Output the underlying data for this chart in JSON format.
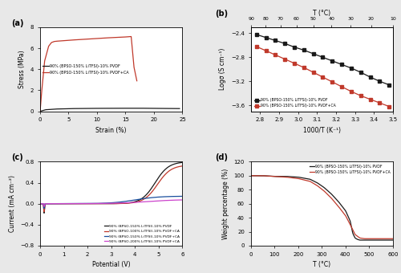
{
  "fig_bg": "#e8e8e8",
  "panel_a": {
    "label": "(a)",
    "xlabel": "Strain (%)",
    "ylabel": "Stress (MPa)",
    "xlim": [
      0,
      25
    ],
    "ylim": [
      0,
      8
    ],
    "yticks": [
      0,
      2,
      4,
      6,
      8
    ],
    "xticks": [
      0,
      5,
      10,
      15,
      20,
      25
    ],
    "legend": [
      "90% (BPSO-150% LiTFSI)-10% PVDF",
      "90% (BPSO-150% LiTFSI)-10% PVDF+CA"
    ],
    "colors": [
      "#1a1a1a",
      "#c0392b"
    ],
    "line1_x": [
      0,
      1.0,
      3.0,
      6.0,
      10.0,
      15.0,
      18.0,
      20.0,
      22.0,
      24.5
    ],
    "line1_y": [
      0,
      0.15,
      0.22,
      0.26,
      0.28,
      0.29,
      0.29,
      0.28,
      0.27,
      0.26
    ],
    "line2_x": [
      0,
      0.3,
      0.8,
      1.5,
      2.0,
      2.5,
      3.0,
      4.0,
      6.0,
      9.0,
      12.0,
      15.0,
      16.0,
      16.5,
      17.0
    ],
    "line2_y": [
      0,
      2.0,
      4.8,
      6.2,
      6.55,
      6.65,
      6.68,
      6.72,
      6.8,
      6.9,
      7.0,
      7.08,
      7.12,
      4.2,
      2.9
    ]
  },
  "panel_b": {
    "label": "(b)",
    "xlabel": "1000/T (K⁻¹)",
    "ylabel": "Logσ (S cm⁻¹)",
    "xlabel2": "T (°C)",
    "xlim": [
      2.75,
      3.5
    ],
    "ylim": [
      -3.7,
      -2.3
    ],
    "yticks": [
      -3.6,
      -3.2,
      -2.8,
      -2.4
    ],
    "xticks": [
      2.8,
      2.9,
      3.0,
      3.1,
      3.2,
      3.3,
      3.4,
      3.5
    ],
    "xticks2": [
      90,
      80,
      70,
      60,
      50,
      40,
      30,
      20,
      10
    ],
    "legend": [
      "90% (BPSO-150% LiTFSI)-10% PVDF",
      "90% (BPSO-150% LiTFSI)-10% PVDF+CA"
    ],
    "colors": [
      "#1a1a1a",
      "#c0392b"
    ],
    "line1_x": [
      2.78,
      2.83,
      2.88,
      2.93,
      2.98,
      3.03,
      3.08,
      3.13,
      3.18,
      3.23,
      3.28,
      3.33,
      3.38,
      3.43,
      3.48
    ],
    "line1_y": [
      -2.42,
      -2.47,
      -2.52,
      -2.57,
      -2.63,
      -2.68,
      -2.74,
      -2.8,
      -2.86,
      -2.92,
      -2.98,
      -3.05,
      -3.13,
      -3.2,
      -3.26
    ],
    "line2_x": [
      2.78,
      2.83,
      2.88,
      2.93,
      2.98,
      3.03,
      3.08,
      3.13,
      3.18,
      3.23,
      3.28,
      3.33,
      3.38,
      3.43,
      3.48
    ],
    "line2_y": [
      -2.62,
      -2.69,
      -2.76,
      -2.83,
      -2.9,
      -2.97,
      -3.05,
      -3.13,
      -3.21,
      -3.29,
      -3.37,
      -3.44,
      -3.5,
      -3.56,
      -3.62
    ]
  },
  "panel_c": {
    "label": "(c)",
    "xlabel": "Potential (V)",
    "ylabel": "Current (mA cm⁻²)",
    "xlim": [
      0,
      6
    ],
    "ylim": [
      -0.8,
      0.8
    ],
    "yticks": [
      -0.8,
      -0.4,
      0.0,
      0.4,
      0.8
    ],
    "xticks": [
      0,
      1,
      2,
      3,
      4,
      5,
      6
    ],
    "legend": [
      "90% (BPSO-150% LiTFSI)-10% PVDF",
      "90% (BPSO-100% LiTFSI)-10% PVDF+CA",
      "90% (BPSO-150% LiTFSI)-10% PVDF+CA",
      "90% (BPSO-200% LiTFSI)-10% PVDF+CA"
    ],
    "colors": [
      "#1a1a1a",
      "#c0392b",
      "#1a4f9e",
      "#cc44cc"
    ]
  },
  "panel_d": {
    "label": "(d)",
    "xlabel": "T (°C)",
    "ylabel": "Weight percentage (%)",
    "xlim": [
      0,
      600
    ],
    "ylim": [
      0,
      120
    ],
    "yticks": [
      0,
      20,
      40,
      60,
      80,
      100,
      120
    ],
    "xticks": [
      0,
      100,
      200,
      300,
      400,
      500,
      600
    ],
    "legend": [
      "90% (BPSO-150% LiTFSI)-10% PVDF",
      "90% (BPSO-150% LiTFSI)-10% PVDF+CA"
    ],
    "colors": [
      "#1a1a1a",
      "#c0392b"
    ]
  }
}
